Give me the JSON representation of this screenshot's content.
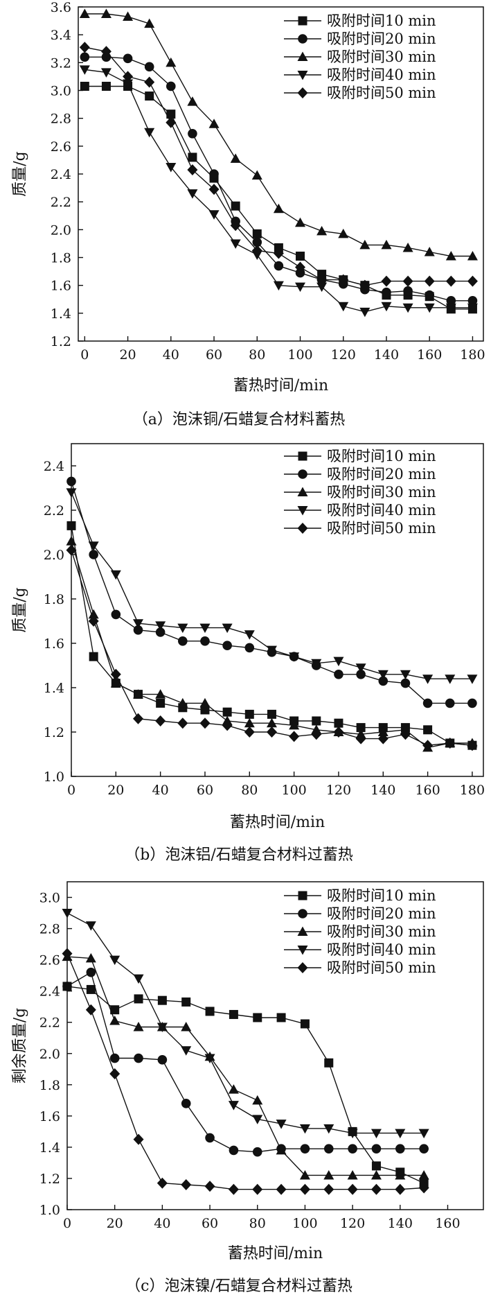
{
  "chart_data": [
    {
      "type": "line",
      "caption": "（a）泡沫铜/石蜡复合材料蓄热",
      "xlabel": "蓄热时间/min",
      "ylabel": "质量/g",
      "xlim": [
        -3,
        185
      ],
      "ylim": [
        1.2,
        3.6
      ],
      "xticks": [
        0,
        20,
        40,
        60,
        80,
        100,
        120,
        140,
        160,
        180
      ],
      "yticks": [
        1.2,
        1.4,
        1.6,
        1.8,
        2.0,
        2.2,
        2.4,
        2.6,
        2.8,
        3.0,
        3.2,
        3.4,
        3.6
      ],
      "ytick_labels": [
        "1.2",
        "1.4",
        "1.6",
        "1.8",
        "2.0",
        "2.2",
        "2.4",
        "2.6",
        "2.8",
        "3.0",
        "3.2",
        "3.4",
        "3.6"
      ],
      "legend_position": "top-right",
      "x": [
        0,
        10,
        20,
        30,
        40,
        50,
        60,
        70,
        80,
        90,
        100,
        110,
        120,
        130,
        140,
        150,
        160,
        170,
        180
      ],
      "series": [
        {
          "name": "吸附时间10 min",
          "marker": "square",
          "values": [
            3.03,
            3.03,
            3.03,
            2.96,
            2.83,
            2.52,
            2.37,
            2.17,
            1.97,
            1.87,
            1.81,
            1.68,
            1.64,
            1.6,
            1.53,
            1.53,
            1.52,
            1.43,
            1.43
          ]
        },
        {
          "name": "吸附时间20 min",
          "marker": "circle",
          "values": [
            3.24,
            3.24,
            3.23,
            3.17,
            3.03,
            2.69,
            2.4,
            2.06,
            1.91,
            1.74,
            1.69,
            1.64,
            1.61,
            1.57,
            1.55,
            1.56,
            1.53,
            1.49,
            1.49
          ]
        },
        {
          "name": "吸附时间30 min",
          "marker": "triangle-up",
          "values": [
            3.55,
            3.55,
            3.53,
            3.48,
            3.2,
            2.92,
            2.76,
            2.51,
            2.39,
            2.15,
            2.05,
            1.99,
            1.97,
            1.89,
            1.89,
            1.87,
            1.84,
            1.81,
            1.81
          ]
        },
        {
          "name": "吸附时间40 min",
          "marker": "triangle-down",
          "values": [
            3.15,
            3.13,
            3.05,
            2.7,
            2.45,
            2.26,
            2.11,
            1.9,
            1.82,
            1.6,
            1.59,
            1.59,
            1.45,
            1.41,
            1.45,
            1.44,
            1.44,
            1.44,
            1.44
          ]
        },
        {
          "name": "吸附时间50 min",
          "marker": "diamond",
          "values": [
            3.31,
            3.28,
            3.1,
            3.06,
            2.77,
            2.43,
            2.29,
            2.03,
            1.85,
            1.83,
            1.73,
            1.64,
            1.64,
            1.6,
            1.63,
            1.63,
            1.63,
            1.63,
            1.63
          ]
        }
      ]
    },
    {
      "type": "line",
      "caption": "（b）泡沫铝/石蜡复合材料过蓄热",
      "xlabel": "蓄热时间/min",
      "ylabel": "质量/g",
      "xlim": [
        0,
        185
      ],
      "ylim": [
        1.0,
        2.5
      ],
      "xticks": [
        0,
        20,
        40,
        60,
        80,
        100,
        120,
        140,
        160,
        180
      ],
      "yticks": [
        1.0,
        1.2,
        1.4,
        1.6,
        1.8,
        2.0,
        2.2,
        2.4
      ],
      "ytick_labels": [
        "1.0",
        "1.2",
        "1.4",
        "1.6",
        "1.8",
        "2.0",
        "2.2",
        "2.4"
      ],
      "legend_position": "top-right",
      "x": [
        0,
        10,
        20,
        30,
        40,
        50,
        60,
        70,
        80,
        90,
        100,
        110,
        120,
        130,
        140,
        150,
        160,
        170,
        180
      ],
      "series": [
        {
          "name": "吸附时间10 min",
          "marker": "square",
          "values": [
            2.13,
            1.54,
            1.42,
            1.37,
            1.33,
            1.31,
            1.3,
            1.29,
            1.28,
            1.28,
            1.25,
            1.25,
            1.24,
            1.22,
            1.22,
            1.22,
            1.21,
            1.15,
            1.14
          ]
        },
        {
          "name": "吸附时间20 min",
          "marker": "circle",
          "values": [
            2.33,
            2.0,
            1.73,
            1.66,
            1.65,
            1.61,
            1.61,
            1.59,
            1.58,
            1.56,
            1.54,
            1.5,
            1.46,
            1.46,
            1.43,
            1.42,
            1.33,
            1.33,
            1.33
          ]
        },
        {
          "name": "吸附时间30 min",
          "marker": "triangle-up",
          "values": [
            2.06,
            1.73,
            1.42,
            1.37,
            1.37,
            1.33,
            1.33,
            1.25,
            1.24,
            1.24,
            1.23,
            1.21,
            1.2,
            1.19,
            1.2,
            1.21,
            1.13,
            1.15,
            1.15
          ]
        },
        {
          "name": "吸附时间40 min",
          "marker": "triangle-down",
          "values": [
            2.28,
            2.04,
            1.91,
            1.69,
            1.68,
            1.67,
            1.67,
            1.67,
            1.64,
            1.57,
            1.54,
            1.51,
            1.52,
            1.49,
            1.46,
            1.46,
            1.44,
            1.44,
            1.44
          ]
        },
        {
          "name": "吸附时间50 min",
          "marker": "diamond",
          "values": [
            2.02,
            1.7,
            1.46,
            1.26,
            1.25,
            1.24,
            1.24,
            1.23,
            1.2,
            1.2,
            1.18,
            1.19,
            1.2,
            1.17,
            1.17,
            1.19,
            1.14,
            1.15,
            1.14
          ]
        }
      ]
    },
    {
      "type": "line",
      "caption": "（c）泡沫镍/石蜡复合材料过蓄热",
      "xlabel": "蓄热时间/min",
      "ylabel": "剩余质量/g",
      "xlim": [
        0,
        175
      ],
      "ylim": [
        1.0,
        3.1
      ],
      "xticks": [
        0,
        20,
        40,
        60,
        80,
        100,
        120,
        140,
        160
      ],
      "yticks": [
        1.0,
        1.2,
        1.4,
        1.6,
        1.8,
        2.0,
        2.2,
        2.4,
        2.6,
        2.8,
        3.0
      ],
      "ytick_labels": [
        "1.0",
        "1.2",
        "1.4",
        "1.6",
        "1.8",
        "2.0",
        "2.2",
        "2.4",
        "2.6",
        "2.8",
        "3.0"
      ],
      "legend_position": "top-right",
      "x": [
        0,
        10,
        20,
        30,
        40,
        50,
        60,
        70,
        80,
        90,
        100,
        110,
        120,
        130,
        140,
        150
      ],
      "series": [
        {
          "name": "吸附时间10 min",
          "marker": "square",
          "values": [
            2.43,
            2.41,
            2.28,
            2.35,
            2.34,
            2.33,
            2.27,
            2.25,
            2.23,
            2.23,
            2.19,
            1.94,
            1.5,
            1.28,
            1.24,
            1.17
          ]
        },
        {
          "name": "吸附时间20 min",
          "marker": "circle",
          "values": [
            2.43,
            2.52,
            1.97,
            1.97,
            1.96,
            1.68,
            1.46,
            1.38,
            1.37,
            1.39,
            1.39,
            1.39,
            1.39,
            1.39,
            1.39,
            1.39
          ]
        },
        {
          "name": "吸附时间30 min",
          "marker": "triangle-up",
          "values": [
            2.62,
            2.61,
            2.21,
            2.17,
            2.17,
            2.17,
            1.98,
            1.77,
            1.7,
            1.38,
            1.22,
            1.22,
            1.22,
            1.22,
            1.22,
            1.22
          ]
        },
        {
          "name": "吸附时间40 min",
          "marker": "triangle-down",
          "values": [
            2.9,
            2.82,
            2.6,
            2.48,
            2.17,
            2.02,
            1.97,
            1.67,
            1.58,
            1.55,
            1.52,
            1.52,
            1.49,
            1.49,
            1.49,
            1.49
          ]
        },
        {
          "name": "吸附时间50 min",
          "marker": "diamond",
          "values": [
            2.64,
            2.28,
            1.87,
            1.45,
            1.17,
            1.16,
            1.15,
            1.13,
            1.13,
            1.13,
            1.13,
            1.13,
            1.13,
            1.13,
            1.13,
            1.14
          ]
        }
      ]
    }
  ]
}
